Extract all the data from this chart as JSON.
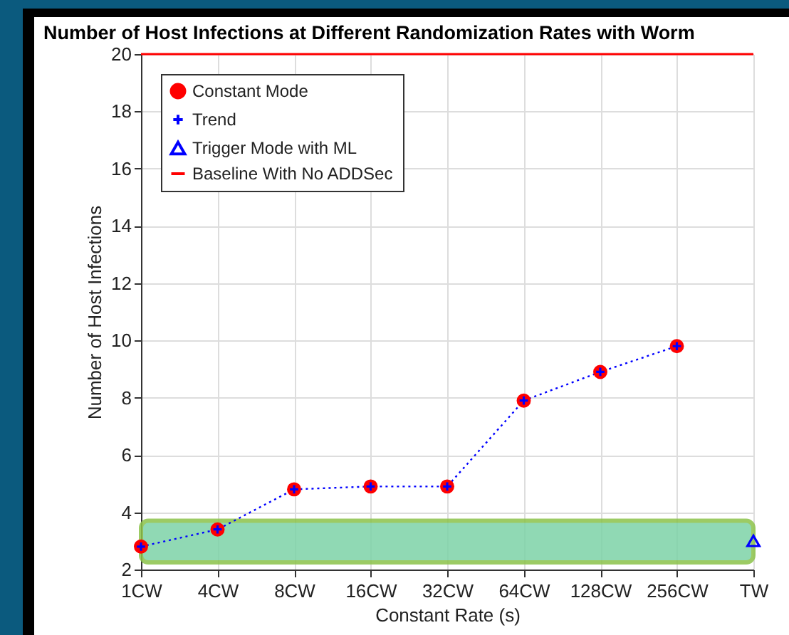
{
  "chart_data": {
    "type": "scatter",
    "title": "Number of Host Infections at Different Randomization Rates with Worm",
    "xlabel": "Constant Rate (s)",
    "ylabel": "Number of Host Infections",
    "categories": [
      "1CW",
      "4CW",
      "8CW",
      "16CW",
      "32CW",
      "64CW",
      "128CW",
      "256CW",
      "TW"
    ],
    "series": [
      {
        "name": "Constant Mode",
        "marker": "circle",
        "color": "#ff0000",
        "values": [
          2.8,
          3.4,
          4.8,
          4.9,
          4.9,
          7.9,
          8.9,
          9.8,
          null
        ]
      },
      {
        "name": "Trend",
        "type": "line",
        "marker": "cross",
        "line_style": "dotted",
        "color": "#0000ff",
        "values": [
          2.8,
          3.4,
          4.8,
          4.9,
          4.9,
          7.9,
          8.9,
          9.8,
          null
        ]
      },
      {
        "name": "Trigger Mode with ML",
        "marker": "triangle",
        "color": "#0000ff",
        "values": [
          null,
          null,
          null,
          null,
          null,
          null,
          null,
          null,
          3.0
        ]
      },
      {
        "name": "Baseline With No ADDSec",
        "type": "line",
        "marker": "none",
        "line_style": "solid",
        "color": "#ff0000",
        "values": [
          20,
          20,
          20,
          20,
          20,
          20,
          20,
          20,
          20
        ]
      }
    ],
    "bands": [
      {
        "axis": "y",
        "from": 2.25,
        "to": 3.7,
        "color": "#7dd3a8"
      }
    ],
    "ylim": [
      2,
      20
    ],
    "yticks": [
      2,
      4,
      6,
      8,
      10,
      12,
      14,
      16,
      18,
      20
    ],
    "grid": true,
    "legend": "top left"
  }
}
